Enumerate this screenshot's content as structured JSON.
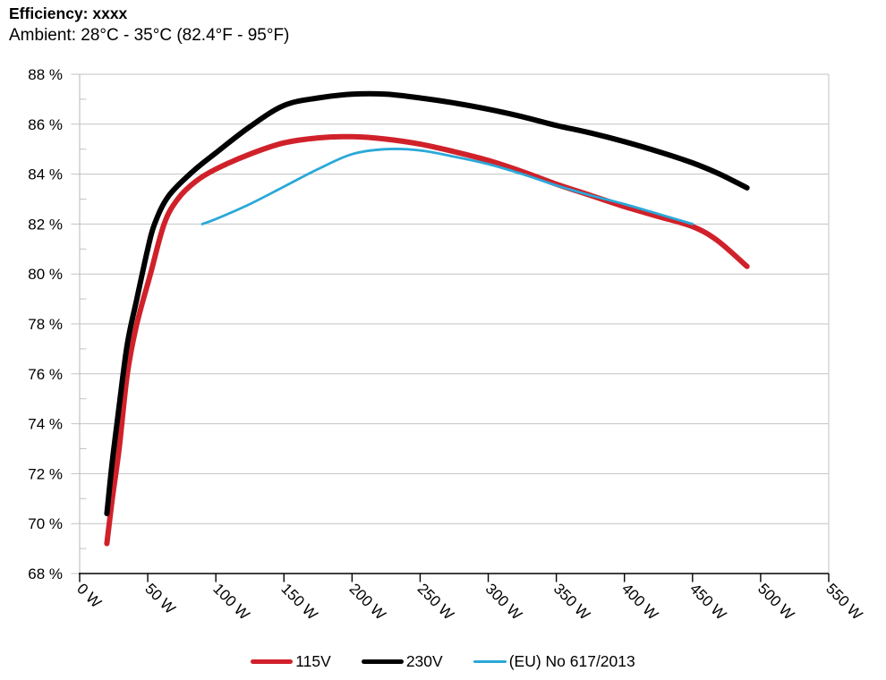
{
  "chart_data": {
    "type": "line",
    "title": "Efficiency: xxxx",
    "subtitle": "Ambient: 28°C - 35°C (82.4°F - 95°F)",
    "xlabel": "",
    "ylabel": "",
    "x_unit": "W",
    "y_unit": "%",
    "xlim": [
      0,
      550
    ],
    "ylim": [
      68,
      88
    ],
    "grid": "horizontal-major",
    "legend_position": "bottom",
    "x_ticks": {
      "values": [
        0,
        50,
        100,
        150,
        200,
        250,
        300,
        350,
        400,
        450,
        500,
        550
      ],
      "labels": [
        "0 W",
        "50 W",
        "100 W",
        "150 W",
        "200 W",
        "250 W",
        "300 W",
        "350 W",
        "400 W",
        "450 W",
        "500 W",
        "550 W"
      ]
    },
    "y_ticks": {
      "values": [
        68,
        70,
        72,
        74,
        76,
        78,
        80,
        82,
        84,
        86,
        88
      ],
      "labels": [
        "68 %",
        "70 %",
        "72 %",
        "74 %",
        "76 %",
        "78 %",
        "80 %",
        "82 %",
        "84 %",
        "86 %",
        "88 %"
      ]
    },
    "y_minor_ticks": [
      69,
      71,
      73,
      75,
      77,
      79,
      81,
      83,
      85,
      87
    ],
    "series": [
      {
        "name": "115V",
        "color": "#d0212a",
        "stroke_width": 6,
        "points": [
          [
            20,
            69.2
          ],
          [
            24,
            71.0
          ],
          [
            29,
            73.0
          ],
          [
            35,
            76.0
          ],
          [
            42,
            78.0
          ],
          [
            52,
            80.0
          ],
          [
            62,
            82.0
          ],
          [
            72,
            83.0
          ],
          [
            85,
            83.7
          ],
          [
            100,
            84.2
          ],
          [
            125,
            84.8
          ],
          [
            150,
            85.25
          ],
          [
            175,
            85.45
          ],
          [
            200,
            85.5
          ],
          [
            225,
            85.4
          ],
          [
            250,
            85.2
          ],
          [
            275,
            84.9
          ],
          [
            300,
            84.55
          ],
          [
            325,
            84.1
          ],
          [
            350,
            83.6
          ],
          [
            375,
            83.15
          ],
          [
            400,
            82.7
          ],
          [
            425,
            82.3
          ],
          [
            450,
            81.9
          ],
          [
            468,
            81.35
          ],
          [
            490,
            80.3
          ]
        ]
      },
      {
        "name": "230V",
        "color": "#000000",
        "stroke_width": 6,
        "points": [
          [
            20,
            70.4
          ],
          [
            24,
            72.5
          ],
          [
            29,
            74.7
          ],
          [
            35,
            77.2
          ],
          [
            42,
            79.0
          ],
          [
            50,
            81.0
          ],
          [
            55,
            82.0
          ],
          [
            65,
            83.1
          ],
          [
            83,
            84.1
          ],
          [
            100,
            84.85
          ],
          [
            125,
            85.9
          ],
          [
            150,
            86.75
          ],
          [
            175,
            87.05
          ],
          [
            200,
            87.2
          ],
          [
            225,
            87.2
          ],
          [
            250,
            87.05
          ],
          [
            275,
            86.85
          ],
          [
            300,
            86.6
          ],
          [
            325,
            86.3
          ],
          [
            350,
            85.95
          ],
          [
            375,
            85.65
          ],
          [
            400,
            85.3
          ],
          [
            425,
            84.9
          ],
          [
            450,
            84.45
          ],
          [
            470,
            84.0
          ],
          [
            490,
            83.45
          ]
        ]
      },
      {
        "name": "(EU) No 617/2013",
        "color": "#2aa8d8",
        "stroke_width": 2.8,
        "points": [
          [
            90,
            82.0
          ],
          [
            100,
            82.2
          ],
          [
            125,
            82.8
          ],
          [
            150,
            83.5
          ],
          [
            175,
            84.2
          ],
          [
            200,
            84.8
          ],
          [
            225,
            85.0
          ],
          [
            250,
            84.95
          ],
          [
            275,
            84.7
          ],
          [
            300,
            84.4
          ],
          [
            325,
            84.0
          ],
          [
            350,
            83.55
          ],
          [
            375,
            83.15
          ],
          [
            400,
            82.8
          ],
          [
            425,
            82.4
          ],
          [
            450,
            82.0
          ]
        ]
      }
    ]
  }
}
